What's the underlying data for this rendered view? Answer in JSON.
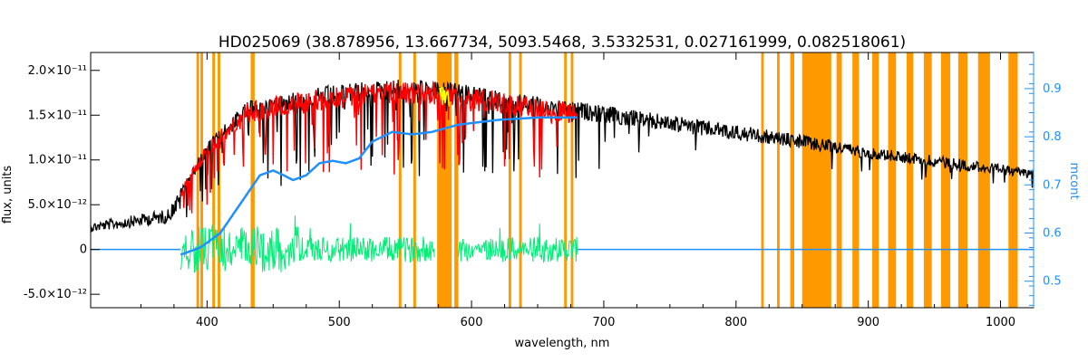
{
  "chart_data": {
    "type": "line",
    "title": "HD025069    (38.878956, 13.667734, 5093.5468, 3.5332531, 0.027161999, 0.082518061)",
    "xlabel": "wavelength, nm",
    "ylabel_left": "flux, units",
    "ylabel_right": "mcont",
    "xlim": [
      312,
      1025
    ],
    "ylim_left": [
      -6.5e-12,
      2.2e-11
    ],
    "ylim_right": [
      0.445,
      0.975
    ],
    "x_ticks": [
      {
        "value": 400,
        "label": "400"
      },
      {
        "value": 500,
        "label": "500"
      },
      {
        "value": 600,
        "label": "600"
      },
      {
        "value": 700,
        "label": "700"
      },
      {
        "value": 800,
        "label": "800"
      },
      {
        "value": 900,
        "label": "900"
      },
      {
        "value": 1000,
        "label": "1000"
      }
    ],
    "y_ticks_left": [
      {
        "value": 2e-11,
        "label": "2.0×10⁻¹¹"
      },
      {
        "value": 1.5e-11,
        "label": "1.5×10⁻¹¹"
      },
      {
        "value": 1e-11,
        "label": "1.0×10⁻¹¹"
      },
      {
        "value": 5e-12,
        "label": "5.0×10⁻¹²"
      },
      {
        "value": 0,
        "label": "0"
      },
      {
        "value": -5e-12,
        "label": "-5.0×10⁻¹²"
      }
    ],
    "y_ticks_right": [
      {
        "value": 0.5,
        "label": "0.5"
      },
      {
        "value": 0.6,
        "label": "0.6"
      },
      {
        "value": 0.7,
        "label": "0.7"
      },
      {
        "value": 0.8,
        "label": "0.8"
      },
      {
        "value": 0.9,
        "label": "0.9"
      }
    ],
    "masked_regions": [
      [
        392,
        394
      ],
      [
        395,
        397
      ],
      [
        404,
        406
      ],
      [
        408,
        410
      ],
      [
        433,
        436
      ],
      [
        545,
        547
      ],
      [
        556,
        558
      ],
      [
        574,
        585
      ],
      [
        587,
        590
      ],
      [
        628,
        630
      ],
      [
        636,
        638
      ],
      [
        670,
        672
      ],
      [
        675,
        677
      ],
      [
        819,
        821
      ],
      [
        831,
        833
      ],
      [
        841,
        844
      ],
      [
        850,
        872
      ],
      [
        876,
        880
      ],
      [
        888,
        893
      ],
      [
        903,
        908
      ],
      [
        915,
        921
      ],
      [
        929,
        934
      ],
      [
        942,
        948
      ],
      [
        955,
        962
      ],
      [
        968,
        975
      ],
      [
        983,
        992
      ],
      [
        1006,
        1013
      ]
    ],
    "series": [
      {
        "kind": "observed_flux",
        "color": "#000000",
        "x_range": [
          312,
          1025
        ],
        "continuum_points": [
          [
            312,
            3e-12
          ],
          [
            370,
            4.5e-12
          ],
          [
            381,
            7e-12
          ],
          [
            400,
            1.2e-11
          ],
          [
            430,
            1.65e-11
          ],
          [
            460,
            1.75e-11
          ],
          [
            500,
            1.85e-11
          ],
          [
            540,
            1.9e-11
          ],
          [
            580,
            1.88e-11
          ],
          [
            630,
            1.75e-11
          ],
          [
            680,
            1.65e-11
          ],
          [
            750,
            1.5e-11
          ],
          [
            850,
            1.28e-11
          ],
          [
            900,
            1.15e-11
          ],
          [
            1000,
            9.5e-12
          ],
          [
            1025,
            9e-12
          ]
        ]
      },
      {
        "kind": "model_fit",
        "color": "#ff0000",
        "x_range": [
          380,
          680
        ]
      },
      {
        "kind": "fit_region_highlight",
        "color": "#ffff00",
        "x_range": [
          576,
          583
        ]
      },
      {
        "kind": "residuals",
        "color": "#00ee76",
        "x_range": [
          380,
          680
        ],
        "gap": [
          572,
          590
        ]
      },
      {
        "kind": "continuum_mcont",
        "color": "#1e90ff",
        "axis": "right",
        "points": [
          [
            380,
            0.555
          ],
          [
            395,
            0.57
          ],
          [
            410,
            0.6
          ],
          [
            425,
            0.66
          ],
          [
            440,
            0.72
          ],
          [
            450,
            0.73
          ],
          [
            458,
            0.72
          ],
          [
            465,
            0.71
          ],
          [
            475,
            0.72
          ],
          [
            485,
            0.745
          ],
          [
            495,
            0.75
          ],
          [
            505,
            0.745
          ],
          [
            515,
            0.755
          ],
          [
            525,
            0.79
          ],
          [
            540,
            0.81
          ],
          [
            555,
            0.805
          ],
          [
            570,
            0.81
          ],
          [
            590,
            0.825
          ],
          [
            620,
            0.835
          ],
          [
            650,
            0.84
          ],
          [
            680,
            0.84
          ]
        ]
      }
    ]
  }
}
